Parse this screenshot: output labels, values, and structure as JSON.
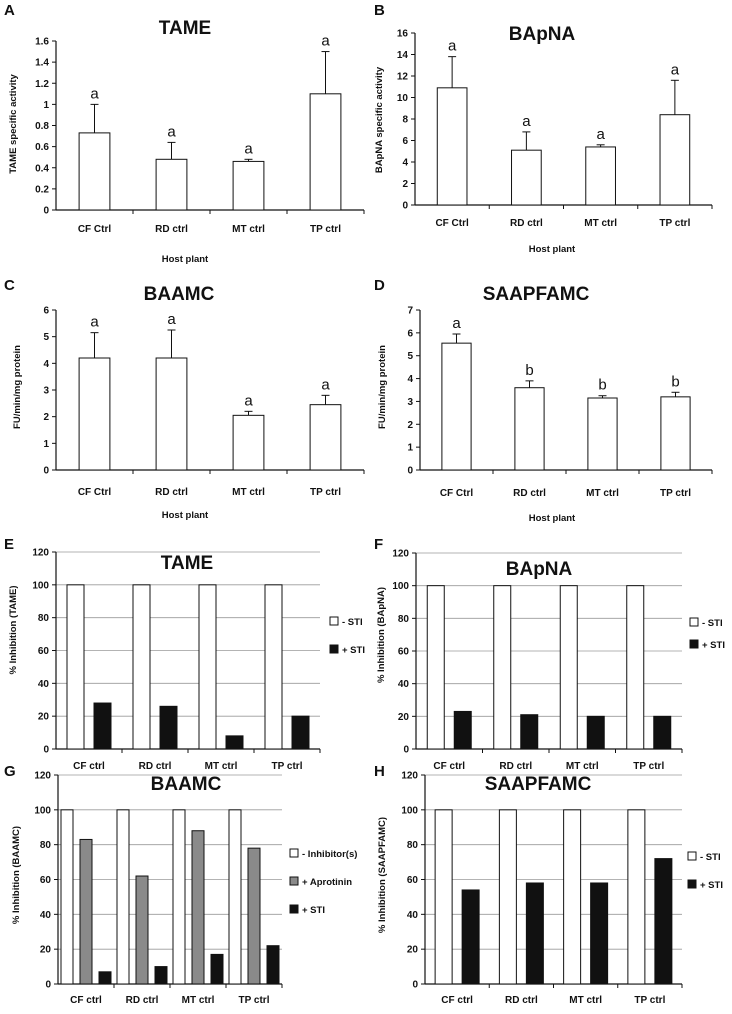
{
  "chart_data": [
    {
      "panel": "A",
      "type": "bar",
      "title": "TAME",
      "categories": [
        "CF Ctrl",
        "RD ctrl",
        "MT ctrl",
        "TP ctrl"
      ],
      "values": [
        0.73,
        0.48,
        0.46,
        1.1
      ],
      "errors": [
        0.27,
        0.16,
        0.02,
        0.4
      ],
      "significance": [
        "a",
        "a",
        "a",
        "a"
      ],
      "ylabel": "TAME specific activity",
      "xlabel": "Host plant",
      "ylim": [
        0,
        1.6
      ],
      "yticks": [
        0,
        0.2,
        0.4,
        0.6,
        0.8,
        1,
        1.2,
        1.4,
        1.6
      ]
    },
    {
      "panel": "B",
      "type": "bar",
      "title": "BApNA",
      "categories": [
        "CF Ctrl",
        "RD ctrl",
        "MT ctrl",
        "TP ctrl"
      ],
      "values": [
        10.9,
        5.1,
        5.4,
        8.4
      ],
      "errors": [
        2.9,
        1.7,
        0.2,
        3.2
      ],
      "significance": [
        "a",
        "a",
        "a",
        "a"
      ],
      "ylabel": "BApNA specific activity",
      "xlabel": "Host plant",
      "ylim": [
        0,
        16
      ],
      "yticks": [
        0,
        2,
        4,
        6,
        8,
        10,
        12,
        14,
        16
      ]
    },
    {
      "panel": "C",
      "type": "bar",
      "title": "BAAMC",
      "categories": [
        "CF Ctrl",
        "RD ctrl",
        "MT ctrl",
        "TP ctrl"
      ],
      "values": [
        4.2,
        4.2,
        2.05,
        2.45
      ],
      "errors": [
        0.95,
        1.05,
        0.15,
        0.35
      ],
      "significance": [
        "a",
        "a",
        "a",
        "a"
      ],
      "ylabel": "FU/min/mg protein",
      "xlabel": "Host plant",
      "ylim": [
        0,
        6
      ],
      "yticks": [
        0,
        1,
        2,
        3,
        4,
        5,
        6
      ]
    },
    {
      "panel": "D",
      "type": "bar",
      "title": "SAAPFAMC",
      "categories": [
        "CF Ctrl",
        "RD ctrl",
        "MT ctrl",
        "TP ctrl"
      ],
      "values": [
        5.55,
        3.6,
        3.15,
        3.2
      ],
      "errors": [
        0.4,
        0.3,
        0.1,
        0.2
      ],
      "significance": [
        "a",
        "b",
        "b",
        "b"
      ],
      "ylabel": "FU/min/mg protein",
      "xlabel": "Host plant",
      "ylim": [
        0,
        7
      ],
      "yticks": [
        0,
        1,
        2,
        3,
        4,
        5,
        6,
        7
      ]
    },
    {
      "panel": "E",
      "type": "bar",
      "title": "TAME",
      "categories": [
        "CF ctrl",
        "RD ctrl",
        "MT ctrl",
        "TP ctrl"
      ],
      "series": [
        {
          "name": "- STI",
          "color": "#ffffff",
          "values": [
            100,
            100,
            100,
            100
          ]
        },
        {
          "name": "+ STI",
          "color": "#111111",
          "values": [
            28,
            26,
            8,
            20
          ]
        }
      ],
      "ylabel": "% Inhibition (TAME)",
      "ylim": [
        0,
        120
      ],
      "yticks": [
        0,
        20,
        40,
        60,
        80,
        100,
        120
      ]
    },
    {
      "panel": "F",
      "type": "bar",
      "title": "BApNA",
      "categories": [
        "CF ctrl",
        "RD ctrl",
        "MT ctrl",
        "TP ctrl"
      ],
      "series": [
        {
          "name": "- STI",
          "color": "#ffffff",
          "values": [
            100,
            100,
            100,
            100
          ]
        },
        {
          "name": "+ STI",
          "color": "#111111",
          "values": [
            23,
            21,
            20,
            20
          ]
        }
      ],
      "ylabel": "% Inhibition (BApNA)",
      "ylim": [
        0,
        120
      ],
      "yticks": [
        0,
        20,
        40,
        60,
        80,
        100,
        120
      ]
    },
    {
      "panel": "G",
      "type": "bar",
      "title": "BAAMC",
      "categories": [
        "CF ctrl",
        "RD ctrl",
        "MT ctrl",
        "TP ctrl"
      ],
      "series": [
        {
          "name": "- Inhibitor(s)",
          "color": "#ffffff",
          "values": [
            100,
            100,
            100,
            100
          ]
        },
        {
          "name": "+ Aprotinin",
          "color": "#8a8a8a",
          "values": [
            83,
            62,
            88,
            78
          ]
        },
        {
          "name": "+ STI",
          "color": "#111111",
          "values": [
            7,
            10,
            17,
            22
          ]
        }
      ],
      "ylabel": "% Inhibition (BAAMC)",
      "ylim": [
        0,
        120
      ],
      "yticks": [
        0,
        20,
        40,
        60,
        80,
        100,
        120
      ]
    },
    {
      "panel": "H",
      "type": "bar",
      "title": "SAAPFAMC",
      "categories": [
        "CF ctrl",
        "RD ctrl",
        "MT ctrl",
        "TP ctrl"
      ],
      "series": [
        {
          "name": "- STI",
          "color": "#ffffff",
          "values": [
            100,
            100,
            100,
            100
          ]
        },
        {
          "name": "+ STI",
          "color": "#111111",
          "values": [
            54,
            58,
            58,
            72
          ]
        }
      ],
      "ylabel": "% Inhibition (SAAPFAMC)",
      "ylim": [
        0,
        120
      ],
      "yticks": [
        0,
        20,
        40,
        60,
        80,
        100,
        120
      ]
    }
  ]
}
